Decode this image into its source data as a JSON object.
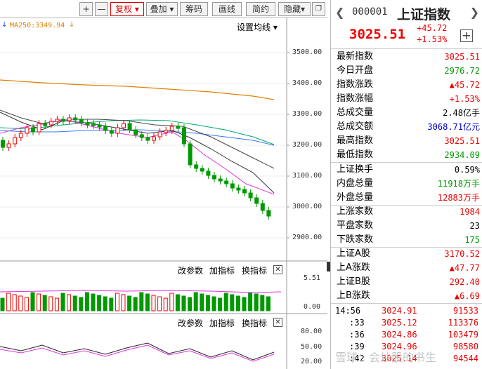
{
  "toolbar": {
    "plus": "+",
    "minus": "—",
    "fuquan": "复权",
    "overlay": "叠加",
    "chips": "筹码",
    "draw": "画线",
    "simple": "简约",
    "hide": "隐藏"
  },
  "chart": {
    "ma250": "MA250:3349.94",
    "settings": "设置均线",
    "ytick": [
      "3500.00",
      "3400.00",
      "3300.00",
      "3200.00",
      "3100.00",
      "3000.00",
      "2900.00"
    ]
  },
  "vol": {
    "params": "改参数",
    "add": "加指标",
    "swap": "换指标",
    "y_hi": "5.51",
    "y_lo": "0.00"
  },
  "osc": {
    "params": "改参数",
    "add": "加指标",
    "swap": "换指标",
    "y1": "80.00",
    "y2": "50.00",
    "y3": "20.00"
  },
  "header": {
    "code": "000001",
    "name": "上证指数",
    "price": "3025.51",
    "chg": "+45.72",
    "pct": "+1.53%"
  },
  "quotes": [
    {
      "k": "最新指数",
      "v": "3025.51",
      "c": "red"
    },
    {
      "k": "今日开盘",
      "v": "2976.72",
      "c": "grn"
    },
    {
      "k": "指数涨跌",
      "v": "▲45.72",
      "c": "red"
    },
    {
      "k": "指数涨幅",
      "v": "+1.53%",
      "c": "red"
    },
    {
      "k": "总成交量",
      "v": "2.48亿手",
      "c": "blk"
    },
    {
      "k": "总成交额",
      "v": "3068.71亿元",
      "c": "blu"
    },
    {
      "k": "最高指数",
      "v": "3025.51",
      "c": "red"
    },
    {
      "k": "最低指数",
      "v": "2934.09",
      "c": "grn"
    }
  ],
  "quotes2": [
    {
      "k": "上证换手",
      "v": "0.59%",
      "c": "blk"
    },
    {
      "k": "内盘总量",
      "v": "11918万手",
      "c": "grn"
    },
    {
      "k": "外盘总量",
      "v": "12883万手",
      "c": "red"
    }
  ],
  "quotes3": [
    {
      "k": "上涨家数",
      "v": "1984",
      "c": "red"
    },
    {
      "k": "平盘家数",
      "v": "23",
      "c": "blk"
    },
    {
      "k": "下跌家数",
      "v": "175",
      "c": "grn"
    }
  ],
  "quotes4": [
    {
      "k": "上证A股",
      "v": "3170.52",
      "c": "red"
    },
    {
      "k": "上A涨跌",
      "v": "▲47.77",
      "c": "red"
    },
    {
      "k": "上证B股",
      "v": "292.40",
      "c": "red"
    },
    {
      "k": "上B涨跌",
      "v": "▲6.69",
      "c": "red"
    }
  ],
  "ticks": [
    {
      "t": "14:56",
      "p": "3024.91",
      "vol": "91533"
    },
    {
      "t": ":33",
      "p": "3025.12",
      "vol": "113376"
    },
    {
      "t": ":36",
      "p": "3024.86",
      "vol": "103479"
    },
    {
      "t": ":39",
      "p": "3024.96",
      "vol": "98580"
    },
    {
      "t": ":42",
      "p": "3025.14",
      "vol": "94544"
    }
  ],
  "watermark": "雪球：会炒股的书生"
}
